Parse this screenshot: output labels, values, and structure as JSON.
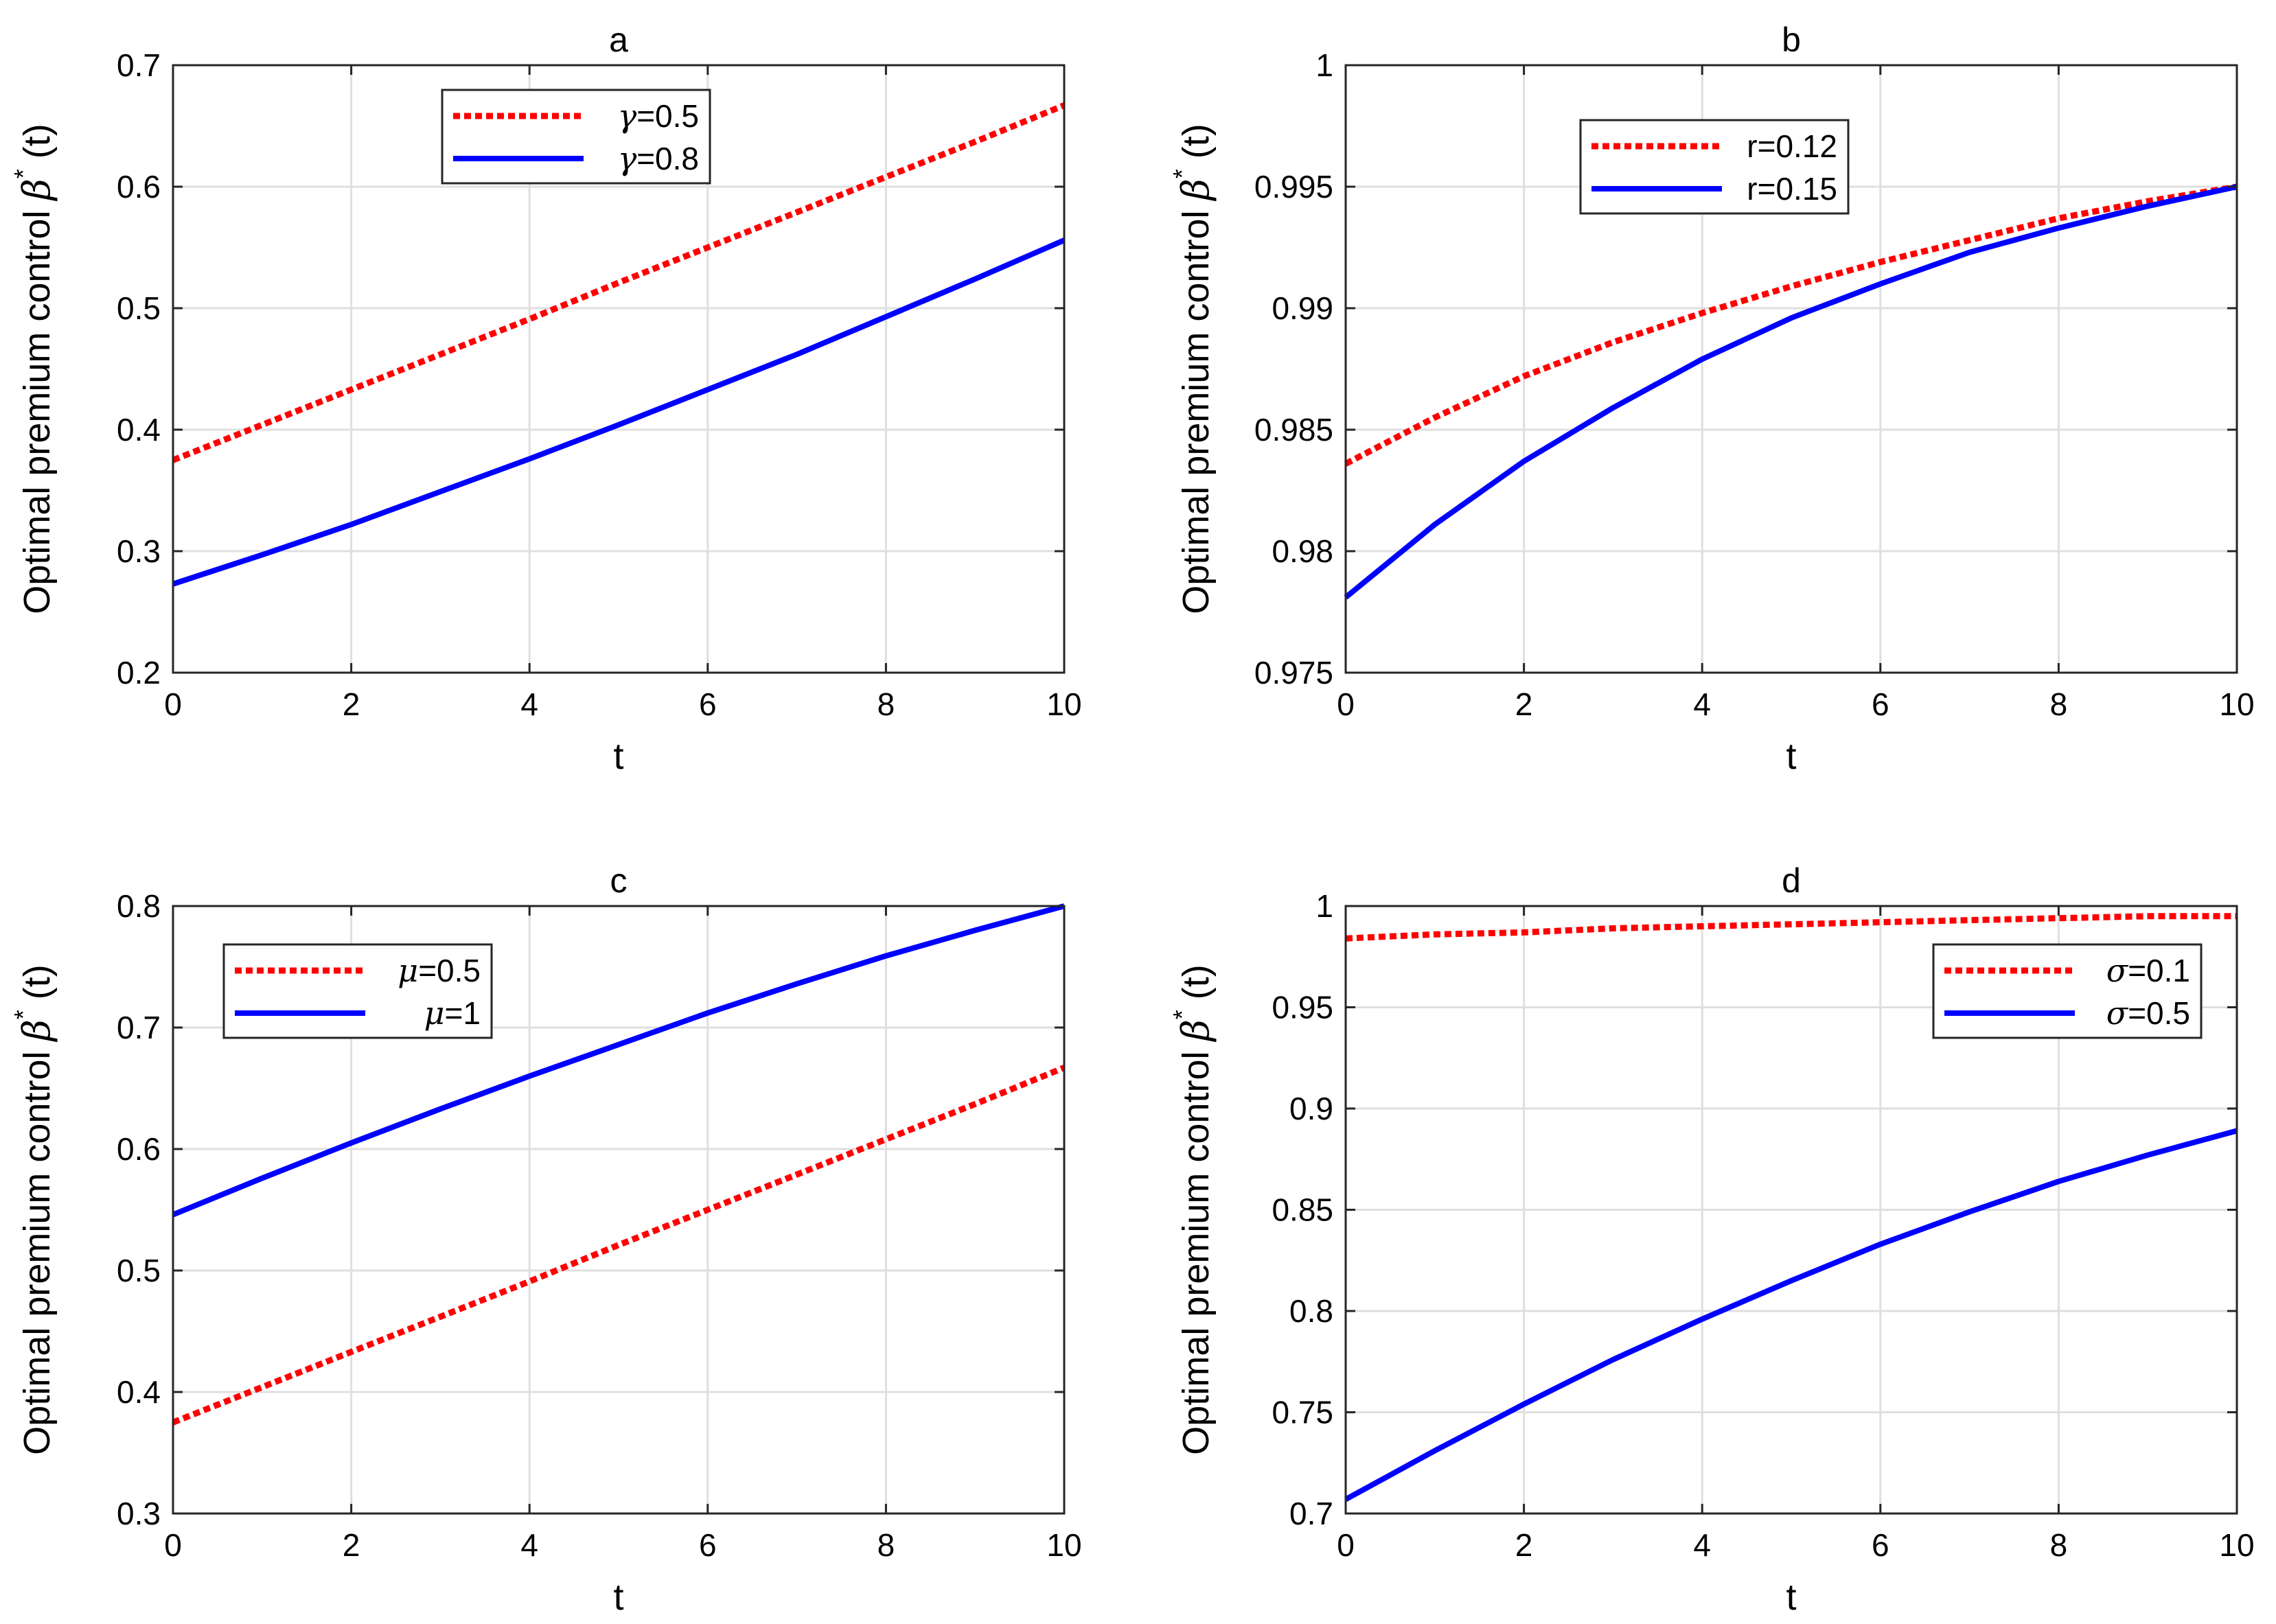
{
  "chart_data": [
    {
      "type": "line",
      "title": "a",
      "xlabel": "t",
      "ylabel": "Optimal premium control β*(t)",
      "ylabel_parts": {
        "main": "Optimal premium control ",
        "symbol": "β",
        "sup": "*",
        "arg": " (t)"
      },
      "xlim": [
        0,
        10
      ],
      "ylim": [
        0.2,
        0.7
      ],
      "xticks": [
        "0",
        "2",
        "4",
        "6",
        "8",
        "10"
      ],
      "yticks": [
        "0.2",
        "0.3",
        "0.4",
        "0.5",
        "0.6",
        "0.7"
      ],
      "grid": true,
      "legend_position": "top-center",
      "x": [
        0,
        1,
        2,
        3,
        4,
        5,
        6,
        7,
        8,
        9,
        10
      ],
      "series": [
        {
          "name": "γ=0.5",
          "name_symbol": "γ",
          "name_rest": "=0.5",
          "style": "dotted",
          "color": "#ff0000",
          "values": [
            0.375,
            0.404,
            0.433,
            0.462,
            0.491,
            0.521,
            0.55,
            0.579,
            0.608,
            0.637,
            0.667
          ]
        },
        {
          "name": "γ=0.8",
          "name_symbol": "γ",
          "name_rest": "=0.8",
          "style": "solid",
          "color": "#0000ff",
          "values": [
            0.273,
            0.297,
            0.322,
            0.349,
            0.376,
            0.404,
            0.433,
            0.462,
            0.493,
            0.524,
            0.556
          ]
        }
      ]
    },
    {
      "type": "line",
      "title": "b",
      "xlabel": "t",
      "ylabel": "Optimal premium control β*(t)",
      "ylabel_parts": {
        "main": "Optimal premium control ",
        "symbol": "β",
        "sup": "*",
        "arg": " (t)"
      },
      "xlim": [
        0,
        10
      ],
      "ylim": [
        0.975,
        1
      ],
      "xticks": [
        "0",
        "2",
        "4",
        "6",
        "8",
        "10"
      ],
      "yticks": [
        "0.975",
        "0.98",
        "0.985",
        "0.99",
        "0.995",
        "1"
      ],
      "grid": true,
      "legend_position": "top-center",
      "x": [
        0,
        1,
        2,
        3,
        4,
        5,
        6,
        7,
        8,
        9,
        10
      ],
      "series": [
        {
          "name": "r=0.12",
          "name_symbol": "",
          "name_rest": "r=0.12",
          "style": "dotted",
          "color": "#ff0000",
          "values": [
            0.9836,
            0.9855,
            0.9872,
            0.9886,
            0.9898,
            0.9909,
            0.9919,
            0.9928,
            0.9937,
            0.9944,
            0.995
          ]
        },
        {
          "name": "r=0.15",
          "name_symbol": "",
          "name_rest": "r=0.15",
          "style": "solid",
          "color": "#0000ff",
          "values": [
            0.9781,
            0.9811,
            0.9837,
            0.9859,
            0.9879,
            0.9896,
            0.991,
            0.9923,
            0.9933,
            0.9942,
            0.995
          ]
        }
      ]
    },
    {
      "type": "line",
      "title": "c",
      "xlabel": "t",
      "ylabel": "Optimal premium control β*(t)",
      "ylabel_parts": {
        "main": "Optimal premium control ",
        "symbol": "β",
        "sup": "*",
        "arg": " (t)"
      },
      "xlim": [
        0,
        10
      ],
      "ylim": [
        0.3,
        0.8
      ],
      "xticks": [
        "0",
        "2",
        "4",
        "6",
        "8",
        "10"
      ],
      "yticks": [
        "0.3",
        "0.4",
        "0.5",
        "0.6",
        "0.7",
        "0.8"
      ],
      "grid": true,
      "legend_position": "top-left",
      "x": [
        0,
        1,
        2,
        3,
        4,
        5,
        6,
        7,
        8,
        9,
        10
      ],
      "series": [
        {
          "name": "μ=0.5",
          "name_symbol": "μ",
          "name_rest": "=0.5",
          "style": "dotted",
          "color": "#ff0000",
          "values": [
            0.375,
            0.404,
            0.433,
            0.462,
            0.491,
            0.521,
            0.55,
            0.579,
            0.608,
            0.637,
            0.667
          ]
        },
        {
          "name": "μ=1",
          "name_symbol": "μ",
          "name_rest": "=1",
          "style": "solid",
          "color": "#0000ff",
          "values": [
            0.546,
            0.576,
            0.605,
            0.633,
            0.66,
            0.686,
            0.712,
            0.736,
            0.759,
            0.78,
            0.8
          ]
        }
      ]
    },
    {
      "type": "line",
      "title": "d",
      "xlabel": "t",
      "ylabel": "Optimal premium control β*(t)",
      "ylabel_parts": {
        "main": "Optimal premium control ",
        "symbol": "β",
        "sup": "*",
        "arg": " (t)"
      },
      "xlim": [
        0,
        10
      ],
      "ylim": [
        0.7,
        1
      ],
      "xticks": [
        "0",
        "2",
        "4",
        "6",
        "8",
        "10"
      ],
      "yticks": [
        "0.7",
        "0.75",
        "0.8",
        "0.85",
        "0.9",
        "0.95",
        "1"
      ],
      "grid": true,
      "legend_position": "top-right",
      "x": [
        0,
        1,
        2,
        3,
        4,
        5,
        6,
        7,
        8,
        9,
        10
      ],
      "series": [
        {
          "name": "σ=0.1",
          "name_symbol": "σ",
          "name_rest": "=0.1",
          "style": "dotted",
          "color": "#ff0000",
          "values": [
            0.984,
            0.986,
            0.987,
            0.989,
            0.99,
            0.991,
            0.992,
            0.993,
            0.994,
            0.995,
            0.995
          ]
        },
        {
          "name": "σ=0.5",
          "name_symbol": "σ",
          "name_rest": "=0.5",
          "style": "solid",
          "color": "#0000ff",
          "values": [
            0.707,
            0.731,
            0.754,
            0.776,
            0.796,
            0.815,
            0.833,
            0.849,
            0.864,
            0.877,
            0.889
          ]
        }
      ]
    }
  ]
}
